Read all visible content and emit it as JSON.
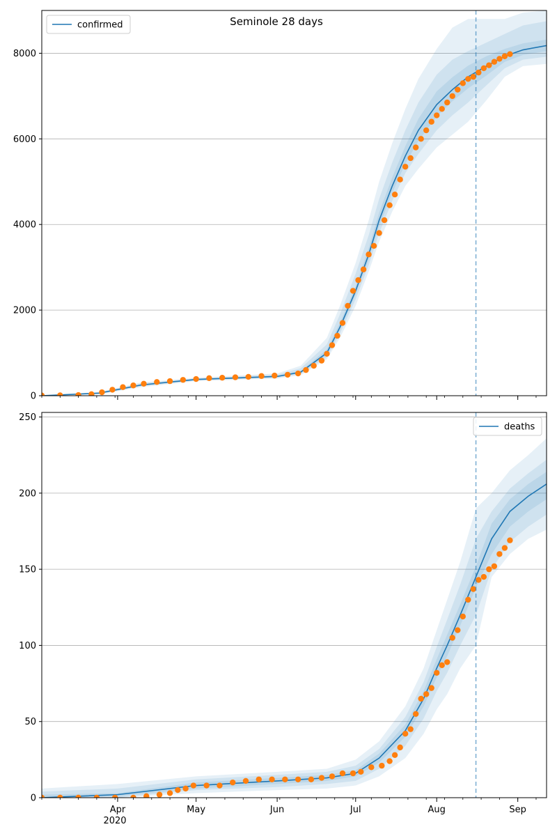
{
  "figure": {
    "title": "Seminole 28 days",
    "year_label": "2020",
    "colors": {
      "model": "#1f77b4",
      "observed": "#ff7f0e",
      "band": "#1f77b4",
      "grid": "#b0b0b0",
      "forecast_line": "#1f77b4"
    }
  },
  "chart_data": [
    {
      "type": "line",
      "panel": "confirmed",
      "legend": [
        "confirmed"
      ],
      "legend_position": "top-left",
      "grid": "horizontal",
      "xlim": [
        "2020-03-03",
        "2020-09-12"
      ],
      "ylim": [
        0,
        9000
      ],
      "yticks": [
        0,
        2000,
        4000,
        6000,
        8000
      ],
      "xtick_labels": [
        {
          "date": "2020-04-01",
          "label": "Apr"
        },
        {
          "date": "2020-05-01",
          "label": "May"
        },
        {
          "date": "2020-06-01",
          "label": "Jun"
        },
        {
          "date": "2020-07-01",
          "label": "Jul"
        },
        {
          "date": "2020-08-01",
          "label": "Aug"
        },
        {
          "date": "2020-09-01",
          "label": "Sep"
        }
      ],
      "forecast_start": "2020-08-16",
      "model": {
        "x": [
          "2020-03-03",
          "2020-03-25",
          "2020-04-10",
          "2020-05-01",
          "2020-06-01",
          "2020-06-10",
          "2020-06-20",
          "2020-06-25",
          "2020-07-01",
          "2020-07-06",
          "2020-07-10",
          "2020-07-15",
          "2020-07-20",
          "2020-07-25",
          "2020-08-01",
          "2020-08-07",
          "2020-08-13",
          "2020-08-20",
          "2020-08-27",
          "2020-09-03",
          "2020-09-12"
        ],
        "median": [
          0,
          60,
          250,
          380,
          450,
          550,
          1000,
          1600,
          2450,
          3300,
          4100,
          4900,
          5600,
          6200,
          6800,
          7150,
          7450,
          7700,
          7930,
          8080,
          8180
        ],
        "bands": [
          {
            "lower": [
              0,
              30,
              200,
              340,
              400,
              480,
              850,
              1350,
              2100,
              2900,
              3600,
              4300,
              4900,
              5300,
              5800,
              6100,
              6400,
              6900,
              7450,
              7700,
              7750
            ],
            "upper": [
              0,
              90,
              310,
              420,
              520,
              700,
              1350,
              2100,
              3100,
              4100,
              5000,
              5900,
              6700,
              7400,
              8100,
              8600,
              8800,
              8800,
              8800,
              8950,
              9000
            ]
          },
          {
            "lower": [
              0,
              40,
              220,
              355,
              420,
              510,
              900,
              1450,
              2250,
              3050,
              3800,
              4550,
              5200,
              5650,
              6200,
              6550,
              6850,
              7250,
              7650,
              7850,
              7920
            ],
            "upper": [
              0,
              80,
              290,
              405,
              495,
              640,
              1200,
              1900,
              2850,
              3750,
              4600,
              5450,
              6200,
              6850,
              7500,
              7850,
              8050,
              8250,
              8450,
              8650,
              8750
            ]
          },
          {
            "lower": [
              0,
              50,
              235,
              368,
              435,
              530,
              950,
              1530,
              2360,
              3180,
              3960,
              4740,
              5420,
              5950,
              6520,
              6880,
              7180,
              7480,
              7800,
              7960,
              8050
            ],
            "upper": [
              0,
              70,
              265,
              392,
              468,
              580,
              1080,
              1700,
              2560,
              3450,
              4280,
              5100,
              5830,
              6470,
              7110,
              7440,
              7710,
              7930,
              8100,
              8230,
              8320
            ]
          }
        ]
      },
      "observed": {
        "x": [
          "2020-03-03",
          "2020-03-10",
          "2020-03-17",
          "2020-03-22",
          "2020-03-26",
          "2020-03-30",
          "2020-04-03",
          "2020-04-07",
          "2020-04-11",
          "2020-04-16",
          "2020-04-21",
          "2020-04-26",
          "2020-05-01",
          "2020-05-06",
          "2020-05-11",
          "2020-05-16",
          "2020-05-21",
          "2020-05-26",
          "2020-05-31",
          "2020-06-05",
          "2020-06-09",
          "2020-06-12",
          "2020-06-15",
          "2020-06-18",
          "2020-06-20",
          "2020-06-22",
          "2020-06-24",
          "2020-06-26",
          "2020-06-28",
          "2020-06-30",
          "2020-07-02",
          "2020-07-04",
          "2020-07-06",
          "2020-07-08",
          "2020-07-10",
          "2020-07-12",
          "2020-07-14",
          "2020-07-16",
          "2020-07-18",
          "2020-07-20",
          "2020-07-22",
          "2020-07-24",
          "2020-07-26",
          "2020-07-28",
          "2020-07-30",
          "2020-08-01",
          "2020-08-03",
          "2020-08-05",
          "2020-08-07",
          "2020-08-09",
          "2020-08-11",
          "2020-08-13",
          "2020-08-15",
          "2020-08-17",
          "2020-08-19",
          "2020-08-21",
          "2020-08-23",
          "2020-08-25",
          "2020-08-27",
          "2020-08-29"
        ],
        "values": [
          5,
          8,
          15,
          35,
          80,
          140,
          200,
          240,
          280,
          320,
          340,
          370,
          390,
          410,
          420,
          430,
          440,
          460,
          470,
          490,
          520,
          600,
          700,
          820,
          980,
          1180,
          1400,
          1700,
          2100,
          2450,
          2700,
          2950,
          3300,
          3500,
          3800,
          4100,
          4450,
          4700,
          5050,
          5350,
          5550,
          5800,
          6000,
          6200,
          6400,
          6550,
          6700,
          6850,
          7000,
          7150,
          7300,
          7400,
          7450,
          7550,
          7650,
          7720,
          7800,
          7870,
          7930,
          7980
        ]
      }
    },
    {
      "type": "line",
      "panel": "deaths",
      "legend": [
        "deaths"
      ],
      "legend_position": "top-right",
      "grid": "horizontal",
      "xlim": [
        "2020-03-03",
        "2020-09-12"
      ],
      "ylim": [
        0,
        253
      ],
      "yticks": [
        0,
        50,
        100,
        150,
        200,
        250
      ],
      "xtick_labels": [
        {
          "date": "2020-04-01",
          "label": "Apr"
        },
        {
          "date": "2020-05-01",
          "label": "May"
        },
        {
          "date": "2020-06-01",
          "label": "Jun"
        },
        {
          "date": "2020-07-01",
          "label": "Jul"
        },
        {
          "date": "2020-08-01",
          "label": "Aug"
        },
        {
          "date": "2020-09-01",
          "label": "Sep"
        }
      ],
      "forecast_start": "2020-08-16",
      "model": {
        "x": [
          "2020-03-03",
          "2020-04-01",
          "2020-05-01",
          "2020-06-01",
          "2020-06-20",
          "2020-07-01",
          "2020-07-10",
          "2020-07-20",
          "2020-07-27",
          "2020-08-01",
          "2020-08-05",
          "2020-08-10",
          "2020-08-16",
          "2020-08-22",
          "2020-08-29",
          "2020-09-05",
          "2020-09-12"
        ],
        "median": [
          0,
          2,
          8,
          11,
          13,
          16,
          26,
          44,
          65,
          85,
          100,
          120,
          145,
          170,
          188,
          198,
          206
        ],
        "bands": [
          {
            "lower": [
              0,
              0,
              3,
              5,
              6,
              8,
              14,
              26,
              42,
              58,
              68,
              85,
              100,
              145,
              160,
              170,
              176
            ],
            "upper": [
              6,
              9,
              14,
              17,
              19,
              25,
              37,
              60,
              85,
              110,
              130,
              155,
              190,
              200,
              215,
              225,
              236
            ]
          },
          {
            "lower": [
              0,
              0,
              5,
              7,
              9,
              11,
              19,
              34,
              52,
              70,
              82,
              100,
              120,
              150,
              168,
              178,
              186
            ],
            "upper": [
              4,
              6,
              12,
              15,
              17,
              21,
              32,
              53,
              76,
              99,
              117,
              140,
              170,
              188,
              203,
              213,
              222
            ]
          },
          {
            "lower": [
              0,
              1,
              6,
              9,
              11,
              14,
              23,
              40,
              60,
              79,
              93,
              113,
              138,
              160,
              178,
              188,
              196
            ],
            "upper": [
              2,
              3,
              10,
              13,
              15,
              18,
              29,
              48,
              70,
              91,
              107,
              127,
              152,
              180,
              196,
              206,
              214
            ]
          }
        ]
      },
      "observed": {
        "x": [
          "2020-03-03",
          "2020-03-10",
          "2020-03-17",
          "2020-03-24",
          "2020-03-31",
          "2020-04-07",
          "2020-04-12",
          "2020-04-17",
          "2020-04-21",
          "2020-04-24",
          "2020-04-27",
          "2020-04-30",
          "2020-05-05",
          "2020-05-10",
          "2020-05-15",
          "2020-05-20",
          "2020-05-25",
          "2020-05-30",
          "2020-06-04",
          "2020-06-09",
          "2020-06-14",
          "2020-06-18",
          "2020-06-22",
          "2020-06-26",
          "2020-06-30",
          "2020-07-03",
          "2020-07-07",
          "2020-07-11",
          "2020-07-14",
          "2020-07-16",
          "2020-07-18",
          "2020-07-20",
          "2020-07-22",
          "2020-07-24",
          "2020-07-26",
          "2020-07-28",
          "2020-07-30",
          "2020-08-01",
          "2020-08-03",
          "2020-08-05",
          "2020-08-07",
          "2020-08-09",
          "2020-08-11",
          "2020-08-13",
          "2020-08-15",
          "2020-08-17",
          "2020-08-19",
          "2020-08-21",
          "2020-08-23",
          "2020-08-25",
          "2020-08-27",
          "2020-08-29"
        ],
        "values": [
          0,
          0,
          0,
          0,
          0,
          0,
          1,
          2,
          3,
          5,
          6,
          8,
          8,
          8,
          10,
          11,
          12,
          12,
          12,
          12,
          12,
          13,
          14,
          16,
          16,
          17,
          20,
          21,
          24,
          28,
          33,
          42,
          45,
          55,
          65,
          68,
          72,
          82,
          87,
          89,
          105,
          110,
          119,
          130,
          137,
          143,
          145,
          150,
          152,
          160,
          164,
          169
        ]
      }
    }
  ]
}
